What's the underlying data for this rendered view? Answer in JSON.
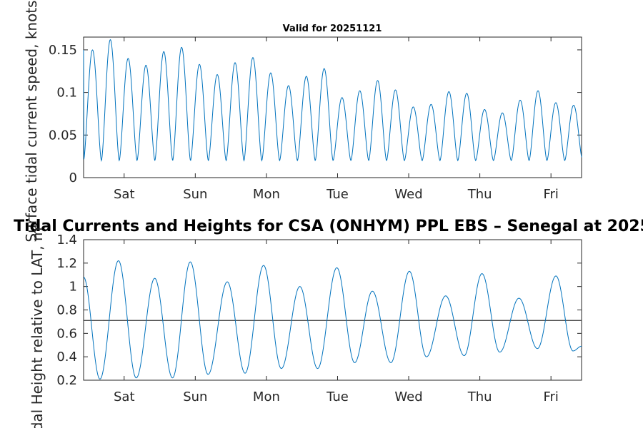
{
  "figure": {
    "top_title": "Valid for 20251121",
    "main_title": "Tidal Currents and Heights for CSA (ONHYM) PPL EBS  – Senegal at 2025"
  },
  "chart_data": [
    {
      "type": "line",
      "title": "Valid for 20251121",
      "xlabel": "",
      "ylabel": "Surface tidal current speed, knots",
      "x_tick_labels": [
        "Sat",
        "Sun",
        "Mon",
        "Tue",
        "Wed",
        "Thu",
        "Fri"
      ],
      "x_tick_days": [
        0.57,
        1.57,
        2.57,
        3.57,
        4.57,
        5.57,
        6.57
      ],
      "xlim_days": [
        0,
        7
      ],
      "ylim": [
        0,
        0.165
      ],
      "y_ticks": [
        0,
        0.05,
        0.1,
        0.15
      ],
      "y_tick_labels": [
        "0",
        "0.05",
        "0.1",
        "0.15"
      ],
      "series": [
        {
          "name": "current speed",
          "color": "#0072bd",
          "semidiurnal_minima": 0.02,
          "peaks": [
            0.15,
            0.162,
            0.14,
            0.132,
            0.148,
            0.153,
            0.133,
            0.121,
            0.135,
            0.141,
            0.123,
            0.108,
            0.119,
            0.128,
            0.094,
            0.102,
            0.114,
            0.103,
            0.083,
            0.086,
            0.101,
            0.099,
            0.08,
            0.076,
            0.091,
            0.102,
            0.088,
            0.085
          ]
        }
      ]
    },
    {
      "type": "line",
      "title": "Tidal Currents and Heights for CSA (ONHYM) PPL EBS  – Senegal at 2025",
      "xlabel": "",
      "ylabel": "Tidal Height relative to LAT, m",
      "x_tick_labels": [
        "Sat",
        "Sun",
        "Mon",
        "Tue",
        "Wed",
        "Thu",
        "Fri"
      ],
      "x_tick_days": [
        0.57,
        1.57,
        2.57,
        3.57,
        4.57,
        5.57,
        6.57
      ],
      "xlim_days": [
        0,
        7
      ],
      "ylim": [
        0.2,
        1.4
      ],
      "y_ticks": [
        0.2,
        0.4,
        0.6,
        0.8,
        1.0,
        1.2,
        1.4
      ],
      "y_tick_labels": [
        "0.2",
        "0.4",
        "0.6",
        "0.8",
        "1",
        "1.2",
        "1.4"
      ],
      "reference_line": {
        "value": 0.71,
        "color": "#333333"
      },
      "series": [
        {
          "name": "tidal height",
          "color": "#0072bd",
          "extrema_days": [
            0,
            0.23,
            0.49,
            0.74,
            1.0,
            1.25,
            1.5,
            1.75,
            2.02,
            2.27,
            2.53,
            2.78,
            3.04,
            3.29,
            3.56,
            3.81,
            4.06,
            4.32,
            4.58,
            4.82,
            5.09,
            5.35,
            5.6,
            5.85,
            6.12,
            6.38,
            6.64,
            6.88,
            7.0
          ],
          "extrema_values": [
            1.08,
            0.21,
            1.22,
            0.22,
            1.07,
            0.22,
            1.21,
            0.25,
            1.04,
            0.26,
            1.18,
            0.3,
            1.0,
            0.3,
            1.16,
            0.35,
            0.96,
            0.35,
            1.13,
            0.4,
            0.92,
            0.41,
            1.11,
            0.44,
            0.9,
            0.47,
            1.09,
            0.45,
            0.49
          ]
        }
      ]
    }
  ]
}
